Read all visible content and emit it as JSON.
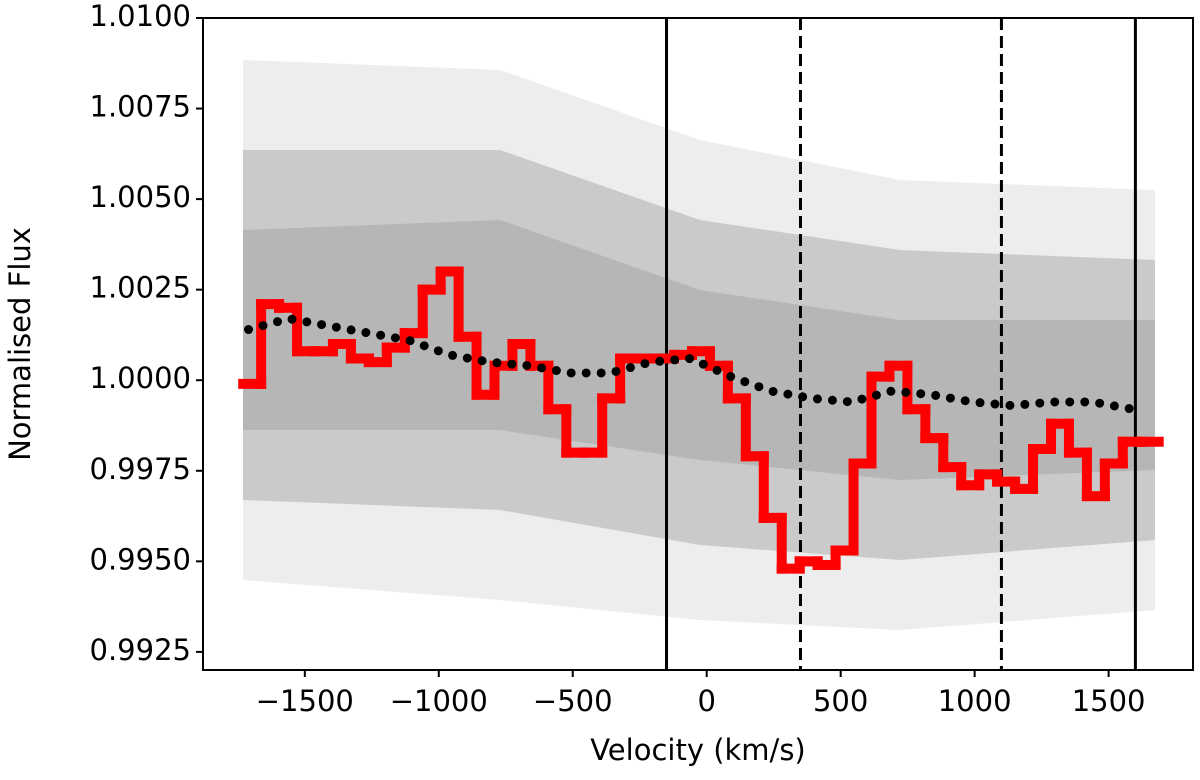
{
  "chart_data": {
    "type": "step",
    "xlabel": "Velocity (km/s)",
    "ylabel": "Normalised Flux",
    "xlim": [
      -1880,
      1815
    ],
    "ylim": [
      0.992,
      1.01
    ],
    "xticks": [
      {
        "value": -1500,
        "label": "−1500"
      },
      {
        "value": -1000,
        "label": "−1000"
      },
      {
        "value": -500,
        "label": "−500"
      },
      0,
      500,
      1000,
      1500
    ],
    "yticks": [
      {
        "value": 0.9925,
        "label": "0.9925"
      },
      {
        "value": 0.995,
        "label": "0.9950"
      },
      {
        "value": 0.9975,
        "label": "0.9975"
      },
      {
        "value": 1.0,
        "label": "1.0000"
      },
      {
        "value": 1.0025,
        "label": "1.0025"
      },
      {
        "value": 1.005,
        "label": "1.0050"
      },
      {
        "value": 1.0075,
        "label": "1.0075"
      },
      {
        "value": 1.01,
        "label": "1.0100"
      }
    ],
    "bin_width": 67,
    "series": [
      {
        "color": "#ff0000",
        "style": "step",
        "x": [
          -1730,
          -1663,
          -1596,
          -1529,
          -1462,
          -1395,
          -1328,
          -1261,
          -1194,
          -1127,
          -1060,
          -993,
          -926,
          -859,
          -792,
          -725,
          -658,
          -591,
          -524,
          -457,
          -390,
          -323,
          -256,
          -189,
          -122,
          -55,
          12,
          79,
          146,
          213,
          280,
          347,
          414,
          481,
          548,
          615,
          682,
          749,
          816,
          883,
          950,
          1017,
          1084,
          1151,
          1218,
          1285,
          1352,
          1419,
          1486,
          1553,
          1620
        ],
        "values": [
          0.9999,
          1.0021,
          1.002,
          1.0008,
          1.0008,
          1.001,
          1.0006,
          1.0005,
          1.0009,
          1.0013,
          1.0025,
          1.003,
          1.0012,
          0.9996,
          1.0004,
          1.001,
          1.0004,
          0.9992,
          0.998,
          0.998,
          0.9995,
          1.0006,
          1.0006,
          1.0006,
          1.0007,
          1.0008,
          1.0004,
          0.9995,
          0.9979,
          0.9962,
          0.9948,
          0.995,
          0.9949,
          0.9953,
          0.9977,
          1.0001,
          1.0004,
          0.9992,
          0.9984,
          0.9976,
          0.9971,
          0.9974,
          0.9972,
          0.997,
          0.9981,
          0.9988,
          0.998,
          0.9968,
          0.9977,
          0.9983,
          0.9983
        ]
      },
      {
        "color": "#000000",
        "style": "dotted",
        "x": [
          -1710,
          -1560,
          -1410,
          -1260,
          -1110,
          -960,
          -810,
          -660,
          -510,
          -360,
          -210,
          -60,
          90,
          240,
          390,
          540,
          690,
          840,
          990,
          1140,
          1290,
          1440,
          1590
        ],
        "values": [
          1.0014,
          1.0017,
          1.0015,
          1.0013,
          1.0011,
          1.0007,
          1.0005,
          1.0004,
          1.0002,
          1.0002,
          1.0005,
          1.0006,
          1.0001,
          0.9997,
          0.9995,
          0.9994,
          0.9997,
          0.9996,
          0.9994,
          0.9993,
          0.9994,
          0.9994,
          0.9992
        ]
      }
    ],
    "vlines": [
      {
        "x": -150,
        "style": "solid"
      },
      {
        "x": 350,
        "style": "dashed"
      },
      {
        "x": 1100,
        "style": "dashed"
      },
      {
        "x": 1600,
        "style": "solid"
      }
    ]
  }
}
